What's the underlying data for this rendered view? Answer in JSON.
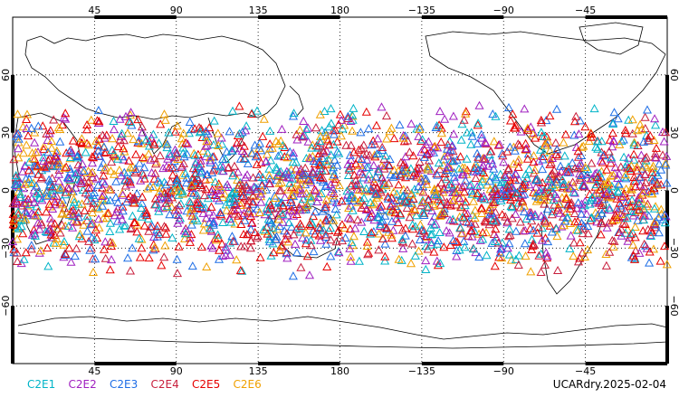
{
  "map": {
    "lon_ticks_top": [
      "45",
      "90",
      "135",
      "180",
      "−135",
      "−90",
      "−45"
    ],
    "lon_ticks_bottom": [
      "45",
      "90",
      "135",
      "180",
      "−135",
      "−90",
      "−45"
    ],
    "lat_ticks_left": [
      "60",
      "30",
      "0",
      "−30",
      "−60"
    ],
    "lat_ticks_right": [
      "60",
      "30",
      "0",
      "−30",
      "−60"
    ],
    "lat_tick_values": [
      60,
      30,
      0,
      -30,
      -60
    ],
    "lon_range": [
      0,
      360
    ],
    "lat_range": [
      -90,
      90
    ],
    "observation_band_lat": [
      -45,
      45
    ],
    "marker": "open-triangle",
    "grid": "dotted",
    "legend": [
      {
        "label": "C2E1",
        "color": "#00b4c8"
      },
      {
        "label": "C2E2",
        "color": "#a020c0"
      },
      {
        "label": "C2E3",
        "color": "#1e6ee6"
      },
      {
        "label": "C2E4",
        "color": "#c81e3c"
      },
      {
        "label": "C2E5",
        "color": "#e60000"
      },
      {
        "label": "C2E6",
        "color": "#f0a000"
      }
    ],
    "stamp": "UCARdry.2025-02-04"
  }
}
